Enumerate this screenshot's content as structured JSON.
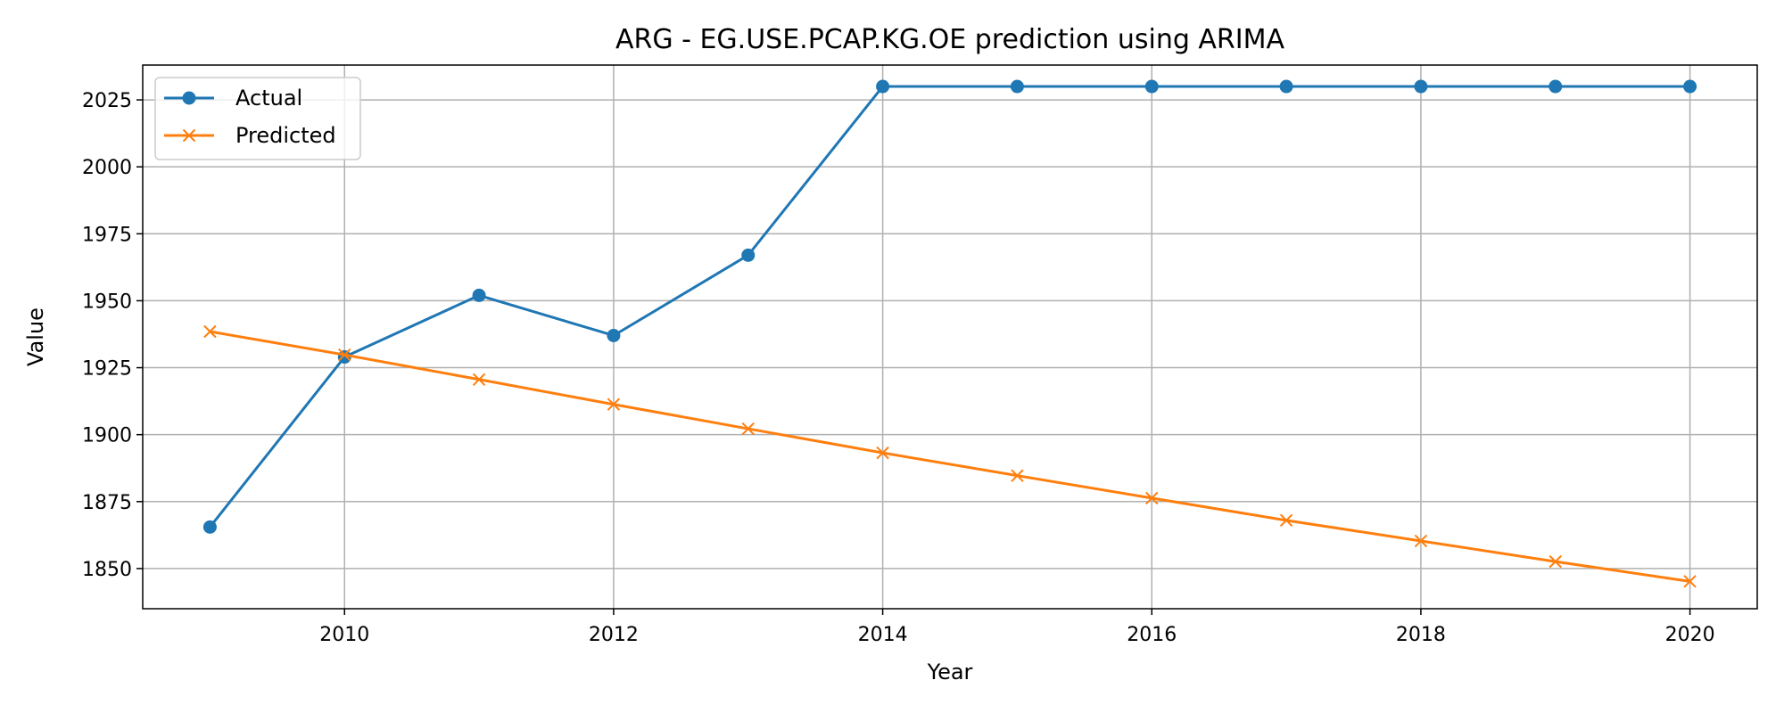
{
  "chart_data": {
    "type": "line",
    "title": "ARG - EG.USE.PCAP.KG.OE prediction using ARIMA",
    "xlabel": "Year",
    "ylabel": "Value",
    "xlim": [
      2008.5,
      2020.5
    ],
    "ylim": [
      1835,
      2038
    ],
    "x_ticks": [
      2010,
      2012,
      2014,
      2016,
      2018,
      2020
    ],
    "y_ticks": [
      1850,
      1875,
      1900,
      1925,
      1950,
      1975,
      2000,
      2025
    ],
    "grid": true,
    "legend_position": "upper-left",
    "x": [
      2009,
      2010,
      2011,
      2012,
      2013,
      2014,
      2015,
      2016,
      2017,
      2018,
      2019,
      2020
    ],
    "series": [
      {
        "name": "Actual",
        "color": "#1f77b4",
        "marker": "circle",
        "values": [
          1865.5,
          1929,
          1952,
          1937,
          1967,
          2030,
          2030,
          2030,
          2030,
          2030,
          2030,
          2030
        ]
      },
      {
        "name": "Predicted",
        "color": "#ff7f0e",
        "marker": "x",
        "values": [
          1938.5,
          1929.8,
          1920.6,
          1911.3,
          1902.2,
          1893.2,
          1884.7,
          1876.3,
          1868.0,
          1860.3,
          1852.6,
          1845.2
        ]
      }
    ]
  }
}
